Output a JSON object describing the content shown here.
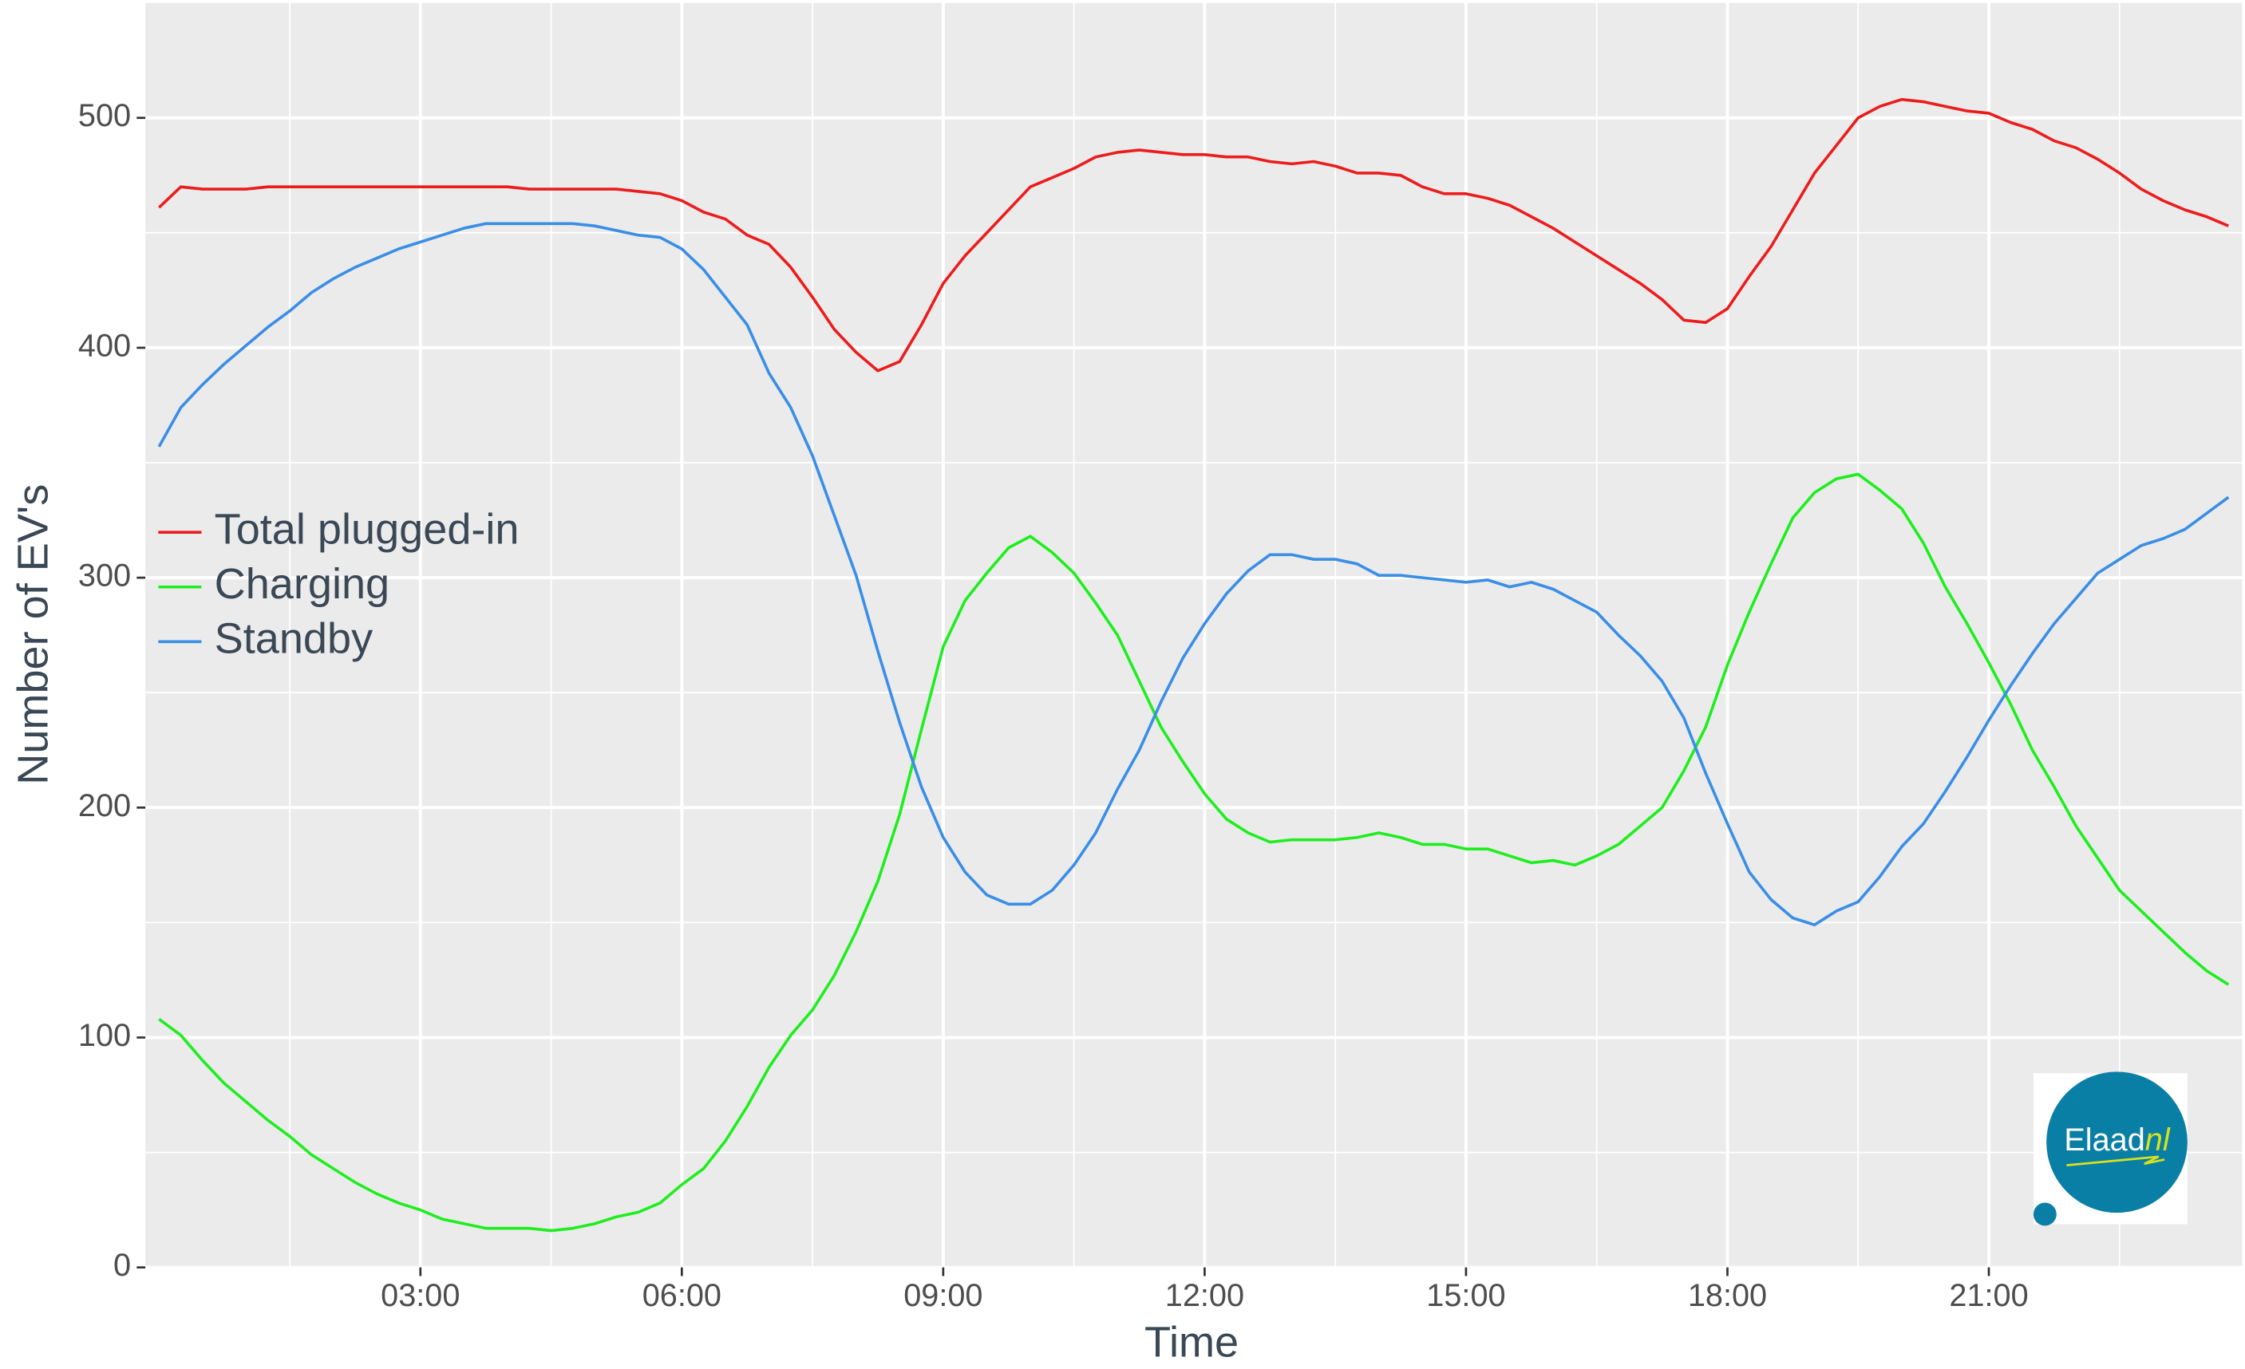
{
  "chart_data": {
    "type": "line",
    "x_label": "Time",
    "y_label": "Number of EV's",
    "x": [
      "00:00",
      "00:15",
      "00:30",
      "00:45",
      "01:00",
      "01:15",
      "01:30",
      "01:45",
      "02:00",
      "02:15",
      "02:30",
      "02:45",
      "03:00",
      "03:15",
      "03:30",
      "03:45",
      "04:00",
      "04:15",
      "04:30",
      "04:45",
      "05:00",
      "05:15",
      "05:30",
      "05:45",
      "06:00",
      "06:15",
      "06:30",
      "06:45",
      "07:00",
      "07:15",
      "07:30",
      "07:45",
      "08:00",
      "08:15",
      "08:30",
      "08:45",
      "09:00",
      "09:15",
      "09:30",
      "09:45",
      "10:00",
      "10:15",
      "10:30",
      "10:45",
      "11:00",
      "11:15",
      "11:30",
      "11:45",
      "12:00",
      "12:15",
      "12:30",
      "12:45",
      "13:00",
      "13:15",
      "13:30",
      "13:45",
      "14:00",
      "14:15",
      "14:30",
      "14:45",
      "15:00",
      "15:15",
      "15:30",
      "15:45",
      "16:00",
      "16:15",
      "16:30",
      "16:45",
      "17:00",
      "17:15",
      "17:30",
      "17:45",
      "18:00",
      "18:15",
      "18:30",
      "18:45",
      "19:00",
      "19:15",
      "19:30",
      "19:45",
      "20:00",
      "20:15",
      "20:30",
      "20:45",
      "21:00",
      "21:15",
      "21:30",
      "21:45",
      "22:00",
      "22:15",
      "22:30",
      "22:45",
      "23:00",
      "23:15",
      "23:30",
      "23:45"
    ],
    "series": [
      {
        "name": "Total plugged-in",
        "color": "#ec1c1c",
        "values": [
          461,
          470,
          469,
          469,
          469,
          470,
          470,
          470,
          470,
          470,
          470,
          470,
          470,
          470,
          470,
          470,
          470,
          469,
          469,
          469,
          469,
          469,
          468,
          467,
          464,
          459,
          456,
          449,
          445,
          435,
          422,
          408,
          398,
          390,
          394,
          410,
          428,
          440,
          450,
          460,
          470,
          474,
          478,
          483,
          485,
          486,
          485,
          484,
          484,
          483,
          483,
          481,
          480,
          481,
          479,
          476,
          476,
          475,
          470,
          467,
          467,
          465,
          462,
          457,
          452,
          446,
          440,
          434,
          428,
          421,
          412,
          411,
          417,
          431,
          444,
          460,
          476,
          488,
          500,
          505,
          508,
          507,
          505,
          503,
          502,
          498,
          495,
          490,
          487,
          482,
          476,
          469,
          464,
          460,
          457,
          453
        ]
      },
      {
        "name": "Charging",
        "color": "#1eee1e",
        "values": [
          108,
          101,
          90,
          80,
          72,
          64,
          57,
          49,
          43,
          37,
          32,
          28,
          25,
          21,
          19,
          17,
          17,
          17,
          16,
          17,
          19,
          22,
          24,
          28,
          36,
          43,
          55,
          70,
          87,
          101,
          112,
          127,
          146,
          168,
          197,
          234,
          270,
          290,
          302,
          313,
          318,
          311,
          302,
          289,
          275,
          255,
          235,
          220,
          206,
          195,
          189,
          185,
          186,
          186,
          186,
          187,
          189,
          187,
          184,
          184,
          182,
          182,
          179,
          176,
          177,
          175,
          179,
          184,
          192,
          200,
          216,
          235,
          262,
          285,
          306,
          326,
          337,
          343,
          345,
          338,
          330,
          315,
          296,
          280,
          263,
          245,
          225,
          209,
          192,
          178,
          164,
          155,
          146,
          137,
          129,
          123
        ]
      },
      {
        "name": "Standby",
        "color": "#3a8ee6",
        "values": [
          357,
          374,
          384,
          393,
          401,
          409,
          416,
          424,
          430,
          435,
          439,
          443,
          446,
          449,
          452,
          454,
          454,
          454,
          454,
          454,
          453,
          451,
          449,
          448,
          443,
          434,
          422,
          410,
          389,
          374,
          353,
          327,
          301,
          268,
          237,
          209,
          187,
          172,
          162,
          158,
          158,
          164,
          175,
          189,
          208,
          225,
          246,
          265,
          280,
          293,
          303,
          310,
          310,
          308,
          308,
          306,
          301,
          301,
          300,
          299,
          298,
          299,
          296,
          298,
          295,
          290,
          285,
          275,
          266,
          255,
          239,
          215,
          193,
          172,
          160,
          152,
          149,
          155,
          159,
          170,
          183,
          193,
          207,
          222,
          238,
          253,
          267,
          280,
          291,
          302,
          308,
          314,
          317,
          321,
          328,
          335
        ]
      }
    ],
    "xlim": [
      "00:00",
      "23:45"
    ],
    "xticks": [
      "03:00",
      "06:00",
      "09:00",
      "12:00",
      "15:00",
      "18:00",
      "21:00"
    ],
    "x_minor_ticks": [
      "01:30",
      "04:30",
      "07:30",
      "10:30",
      "13:30",
      "16:30",
      "19:30",
      "22:30"
    ],
    "ylim": [
      0,
      550
    ],
    "yticks": [
      0,
      100,
      200,
      300,
      400,
      500
    ],
    "y_minor_ticks": [
      50,
      150,
      250,
      350,
      450
    ],
    "grid": true,
    "legend": "left",
    "logo": {
      "name": "Elaad",
      "suffix": "nl"
    }
  }
}
